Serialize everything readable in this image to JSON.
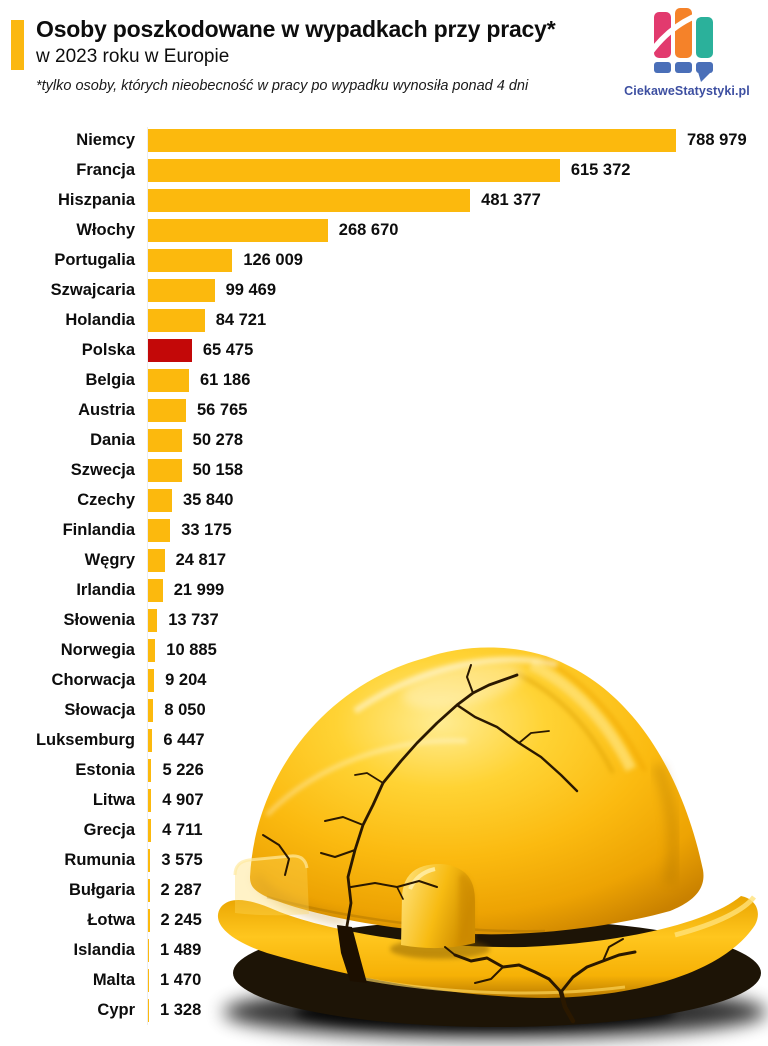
{
  "header": {
    "title": "Osoby poszkodowane w wypadkach przy pracy*",
    "subtitle": "w 2023 roku w Europie",
    "footnote": "*tylko osoby, których nieobecność w pracy po wypadku wynosiła ponad 4 dni",
    "accent_color": "#FBB811"
  },
  "logo": {
    "text": "CiekaweStatystyki.pl",
    "icon": "bar-chart-speech-bubble",
    "colors": {
      "pink": "#E23A6E",
      "orange": "#F58229",
      "teal": "#2BB19B",
      "blue": "#4A6FB8",
      "text": "#3D4FA1"
    }
  },
  "chart_data": {
    "type": "bar",
    "orientation": "horizontal",
    "title": "Osoby poszkodowane w wypadkach przy pracy* w 2023 roku w Europie",
    "xlabel": "",
    "ylabel": "",
    "xlim": [
      0,
      788979
    ],
    "grid": false,
    "legend": "none",
    "bar_color": "#FCB90D",
    "highlight_color": "#C30808",
    "highlight_category": "Polska",
    "categories": [
      "Niemcy",
      "Francja",
      "Hiszpania",
      "Włochy",
      "Portugalia",
      "Szwajcaria",
      "Holandia",
      "Polska",
      "Belgia",
      "Austria",
      "Dania",
      "Szwecja",
      "Czechy",
      "Finlandia",
      "Węgry",
      "Irlandia",
      "Słowenia",
      "Norwegia",
      "Chorwacja",
      "Słowacja",
      "Luksemburg",
      "Estonia",
      "Litwa",
      "Grecja",
      "Rumunia",
      "Bułgaria",
      "Łotwa",
      "Islandia",
      "Malta",
      "Cypr"
    ],
    "values": [
      788979,
      615372,
      481377,
      268670,
      126009,
      99469,
      84721,
      65475,
      61186,
      56765,
      50278,
      50158,
      35840,
      33175,
      24817,
      21999,
      13737,
      10885,
      9204,
      8050,
      6447,
      5226,
      4907,
      4711,
      3575,
      2287,
      2245,
      1489,
      1470,
      1328
    ],
    "display_values": [
      "788 979",
      "615 372",
      "481 377",
      "268 670",
      "126 009",
      "99 469",
      "84 721",
      "65 475",
      "61 186",
      "56 765",
      "50 278",
      "50 158",
      "35 840",
      "33 175",
      "24 817",
      "21 999",
      "13 737",
      "10 885",
      "9 204",
      "8 050",
      "6 447",
      "5 226",
      "4 907",
      "4 711",
      "3 575",
      "2 287",
      "2 245",
      "1 489",
      "1 470",
      "1 328"
    ]
  },
  "illustration": {
    "name": "cracked-yellow-hard-hat"
  }
}
